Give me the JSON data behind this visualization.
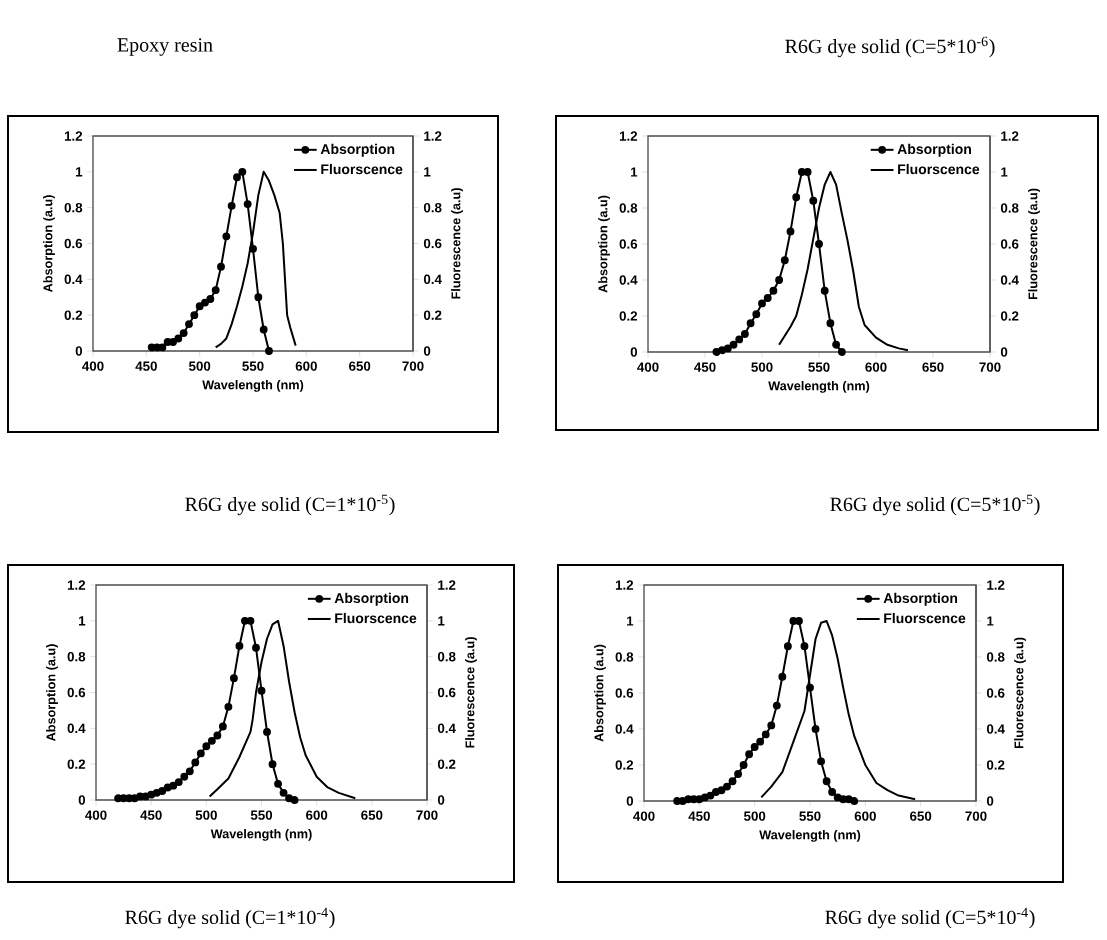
{
  "chart_data": [
    {
      "type": "line",
      "title": "Epoxy resin",
      "xlabel": "Wavelength (nm)",
      "ylabel": "Absorption (a.u)",
      "y2label": "Fluorescence (a.u)",
      "annotations": [
        "R6G dye solid (C=1*10$^{-5}$)"
      ],
      "xlim": [
        400,
        700
      ],
      "xticks": [
        400,
        450,
        500,
        550,
        600,
        650,
        700
      ],
      "ylim": [
        0,
        1.2
      ],
      "yticks": [
        0,
        0.2,
        0.4,
        0.6,
        0.8,
        1,
        1.2
      ],
      "y2lim": [
        0,
        1.2
      ],
      "y2ticks": [
        0,
        0.2,
        0.4,
        0.6,
        0.8,
        1,
        1.2
      ],
      "legend": "top right",
      "series": [
        {
          "name": "Absorption",
          "color": "#000000",
          "marker": "circle",
          "x": [
            455,
            460,
            465,
            470,
            475,
            480,
            485,
            490,
            495,
            500,
            505,
            510,
            515,
            520,
            525,
            530,
            535,
            540,
            545,
            550,
            555,
            560,
            565
          ],
          "values": [
            0.02,
            0.02,
            0.02,
            0.05,
            0.05,
            0.07,
            0.1,
            0.15,
            0.2,
            0.25,
            0.27,
            0.29,
            0.34,
            0.47,
            0.64,
            0.81,
            0.97,
            1.0,
            0.82,
            0.57,
            0.3,
            0.12,
            0.0
          ]
        },
        {
          "name": "Fluorscence",
          "color": "#000000",
          "marker": "none",
          "axis": "y2",
          "x": [
            515,
            520,
            525,
            530,
            535,
            540,
            545,
            550,
            555,
            560,
            565,
            570,
            575,
            578,
            580,
            582,
            585,
            590
          ],
          "values": [
            0.02,
            0.04,
            0.07,
            0.15,
            0.25,
            0.36,
            0.49,
            0.66,
            0.87,
            1.0,
            0.95,
            0.87,
            0.77,
            0.6,
            0.4,
            0.2,
            0.13,
            0.03
          ]
        }
      ]
    },
    {
      "type": "line",
      "title": "R6G dye solid (C=5*10$^{-6}$)",
      "xlabel": "Wavelength (nm)",
      "ylabel": "Absorption (a.u)",
      "y2label": "Fluorescence (a.u)",
      "annotations": [
        "R6G dye solid (C=5*10$^{-5}$)"
      ],
      "xlim": [
        400,
        700
      ],
      "xticks": [
        400,
        450,
        500,
        550,
        600,
        650,
        700
      ],
      "ylim": [
        0,
        1.2
      ],
      "yticks": [
        0,
        0.2,
        0.4,
        0.6,
        0.8,
        1,
        1.2
      ],
      "y2lim": [
        0,
        1.2
      ],
      "y2ticks": [
        0,
        0.2,
        0.4,
        0.6,
        0.8,
        1,
        1.2
      ],
      "legend": "top right",
      "series": [
        {
          "name": "Absorption",
          "color": "#000000",
          "marker": "circle",
          "x": [
            460,
            465,
            470,
            475,
            480,
            485,
            490,
            495,
            500,
            505,
            510,
            515,
            520,
            525,
            530,
            535,
            540,
            545,
            550,
            555,
            560,
            565,
            570
          ],
          "values": [
            0.0,
            0.01,
            0.02,
            0.04,
            0.07,
            0.1,
            0.16,
            0.21,
            0.27,
            0.3,
            0.34,
            0.4,
            0.51,
            0.67,
            0.86,
            1.0,
            1.0,
            0.84,
            0.6,
            0.34,
            0.16,
            0.04,
            0.0
          ]
        },
        {
          "name": "Fluorscence",
          "color": "#000000",
          "marker": "none",
          "axis": "y2",
          "x": [
            515,
            520,
            525,
            530,
            535,
            540,
            545,
            550,
            555,
            560,
            565,
            570,
            575,
            580,
            585,
            590,
            600,
            610,
            620,
            628
          ],
          "values": [
            0.04,
            0.09,
            0.14,
            0.2,
            0.32,
            0.46,
            0.63,
            0.8,
            0.93,
            1.0,
            0.93,
            0.77,
            0.62,
            0.45,
            0.25,
            0.15,
            0.08,
            0.04,
            0.02,
            0.01
          ]
        }
      ]
    },
    {
      "type": "line",
      "xlabel": "Wavelength (nm)",
      "ylabel": "Absorption (a.u)",
      "y2label": "Fluorescence (a.u)",
      "annotations": [
        "R6G dye solid (C=1*10$^{-4}$)"
      ],
      "xlim": [
        400,
        700
      ],
      "xticks": [
        400,
        450,
        500,
        550,
        600,
        650,
        700
      ],
      "ylim": [
        0,
        1.2
      ],
      "yticks": [
        0,
        0.2,
        0.4,
        0.6,
        0.8,
        1,
        1.2
      ],
      "y2lim": [
        0,
        1.2
      ],
      "y2ticks": [
        0,
        0.2,
        0.4,
        0.6,
        0.8,
        1,
        1.2
      ],
      "legend": "top right",
      "series": [
        {
          "name": "Absorption",
          "color": "#000000",
          "marker": "circle",
          "x": [
            420,
            425,
            430,
            435,
            440,
            445,
            450,
            455,
            460,
            465,
            470,
            475,
            480,
            485,
            490,
            495,
            500,
            505,
            510,
            515,
            520,
            525,
            530,
            535,
            540,
            545,
            550,
            555,
            560,
            565,
            570,
            575,
            580
          ],
          "values": [
            0.01,
            0.01,
            0.01,
            0.01,
            0.02,
            0.02,
            0.03,
            0.04,
            0.05,
            0.07,
            0.08,
            0.1,
            0.13,
            0.16,
            0.21,
            0.26,
            0.3,
            0.33,
            0.36,
            0.41,
            0.52,
            0.68,
            0.86,
            1.0,
            1.0,
            0.85,
            0.61,
            0.38,
            0.2,
            0.09,
            0.04,
            0.01,
            0.0
          ]
        },
        {
          "name": "Fluorscence",
          "color": "#000000",
          "marker": "none",
          "axis": "y2",
          "x": [
            503,
            510,
            520,
            530,
            540,
            542,
            545,
            550,
            555,
            560,
            565,
            570,
            575,
            580,
            585,
            590,
            600,
            610,
            620,
            635
          ],
          "values": [
            0.02,
            0.06,
            0.12,
            0.24,
            0.38,
            0.45,
            0.6,
            0.77,
            0.9,
            0.98,
            1.0,
            0.86,
            0.66,
            0.49,
            0.35,
            0.25,
            0.13,
            0.07,
            0.04,
            0.01
          ]
        }
      ]
    },
    {
      "type": "line",
      "xlabel": "Wavelength (nm)",
      "ylabel": "Absorption (a.u)",
      "y2label": "Fluorescence (a.u)",
      "annotations": [
        "R6G dye solid (C=5*10$^{-4}$)"
      ],
      "xlim": [
        400,
        700
      ],
      "xticks": [
        400,
        450,
        500,
        550,
        600,
        650,
        700
      ],
      "ylim": [
        0,
        1.2
      ],
      "yticks": [
        0,
        0.2,
        0.4,
        0.6,
        0.8,
        1,
        1.2
      ],
      "y2lim": [
        0,
        1.2
      ],
      "y2ticks": [
        0,
        0.2,
        0.4,
        0.6,
        0.8,
        1,
        1.2
      ],
      "legend": "top right",
      "series": [
        {
          "name": "Absorption",
          "color": "#000000",
          "marker": "circle",
          "x": [
            430,
            435,
            440,
            445,
            450,
            455,
            460,
            465,
            470,
            475,
            480,
            485,
            490,
            495,
            500,
            505,
            510,
            515,
            520,
            525,
            530,
            535,
            540,
            545,
            550,
            555,
            560,
            565,
            570,
            575,
            580,
            585,
            590
          ],
          "values": [
            0.0,
            0.0,
            0.01,
            0.01,
            0.01,
            0.02,
            0.03,
            0.05,
            0.06,
            0.08,
            0.11,
            0.15,
            0.2,
            0.26,
            0.3,
            0.33,
            0.37,
            0.42,
            0.53,
            0.69,
            0.86,
            1.0,
            1.0,
            0.86,
            0.63,
            0.4,
            0.22,
            0.11,
            0.05,
            0.02,
            0.01,
            0.01,
            0.0
          ]
        },
        {
          "name": "Fluorscence",
          "color": "#000000",
          "marker": "none",
          "axis": "y2",
          "x": [
            506,
            515,
            525,
            535,
            545,
            550,
            555,
            560,
            565,
            570,
            575,
            580,
            585,
            590,
            600,
            610,
            620,
            630,
            645
          ],
          "values": [
            0.02,
            0.08,
            0.16,
            0.33,
            0.5,
            0.7,
            0.9,
            0.99,
            1.0,
            0.92,
            0.79,
            0.63,
            0.48,
            0.36,
            0.2,
            0.1,
            0.06,
            0.03,
            0.01
          ]
        }
      ]
    }
  ]
}
